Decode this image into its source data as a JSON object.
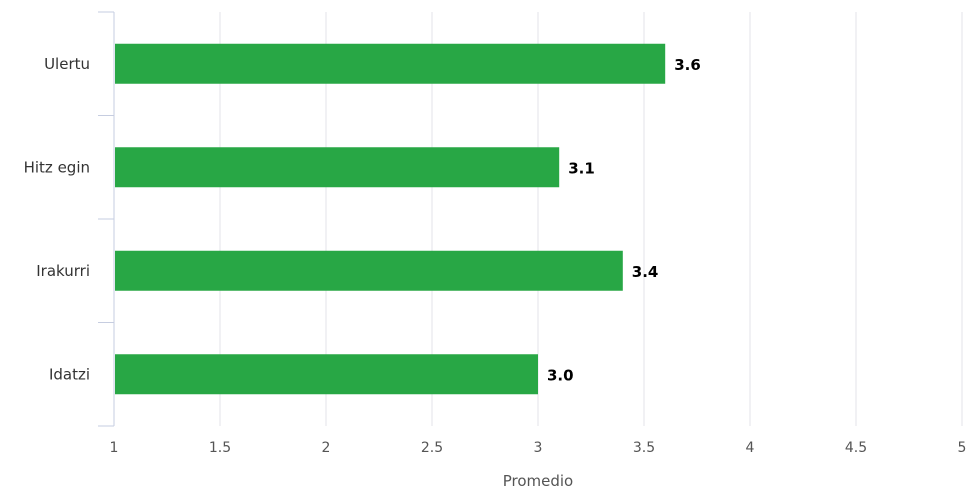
{
  "chart_data": {
    "type": "bar",
    "orientation": "horizontal",
    "title": "",
    "xlabel": "Promedio",
    "ylabel": "",
    "categories": [
      "Ulertu",
      "Hitz egin",
      "Irakurri",
      "Idatzi"
    ],
    "values": [
      3.6,
      3.1,
      3.4,
      3.0
    ],
    "data_labels": [
      "3.6",
      "3.1",
      "3.4",
      "3.0"
    ],
    "xlim": [
      1,
      5
    ],
    "x_ticks": [
      1,
      1.5,
      2,
      2.5,
      3,
      3.5,
      4,
      4.5,
      5
    ],
    "x_tick_labels": [
      "1",
      "1.5",
      "2",
      "2.5",
      "3",
      "3.5",
      "4",
      "4.5",
      "5"
    ],
    "grid": true,
    "legend": "none",
    "bar_color": "#28a745"
  }
}
